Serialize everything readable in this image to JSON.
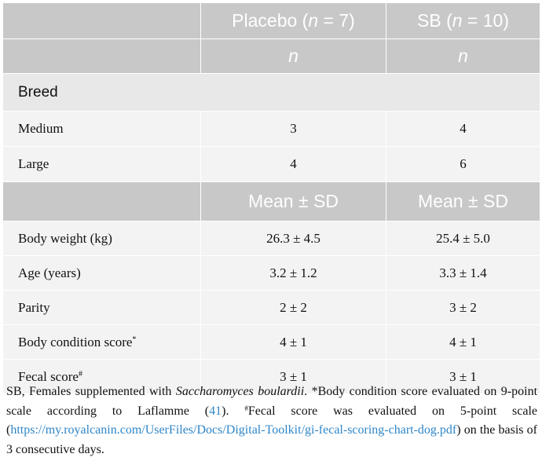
{
  "table": {
    "header": {
      "group1": "Placebo (",
      "group1_n": "n",
      "group1_eq": " = 7)",
      "group2": "SB (",
      "group2_n": "n",
      "group2_eq": " = 10)",
      "sub1": "n",
      "sub2": "n"
    },
    "section_breed": "Breed",
    "breed_rows": [
      {
        "label": "Medium",
        "placebo": "3",
        "sb": "4"
      },
      {
        "label": "Large",
        "placebo": "4",
        "sb": "6"
      }
    ],
    "stats_header": {
      "col1": "Mean ± SD",
      "col2": "Mean ± SD"
    },
    "stat_rows": [
      {
        "label": "Body weight (kg)",
        "mark": "",
        "placebo": "26.3 ± 4.5",
        "sb": "25.4 ± 5.0"
      },
      {
        "label": "Age (years)",
        "mark": "",
        "placebo": "3.2 ± 1.2",
        "sb": "3.3 ± 1.4"
      },
      {
        "label": "Parity",
        "mark": "",
        "placebo": "2 ± 2",
        "sb": "3 ± 2"
      },
      {
        "label": "Body condition score",
        "mark": "*",
        "placebo": "4 ± 1",
        "sb": "4 ± 1"
      },
      {
        "label": "Fecal score",
        "mark": "#",
        "placebo": "3 ± 1",
        "sb": "3 ± 1"
      }
    ]
  },
  "footnote": {
    "part1": "SB, Females supplemented with ",
    "species": "Saccharomyces boulardii",
    "part2": ". *Body condition score evaluated on 9-point scale according to Laflamme (",
    "ref": "41",
    "part3": "). ",
    "hash": "#",
    "part4": "Fecal score was evaluated on 5-point scale (",
    "url": "https://my.royalcanin.com/UserFiles/Docs/Digital-Toolkit/gi-fecal-scoring-chart-dog.pdf",
    "part5": ") on the basis of 3 consecutive days."
  }
}
